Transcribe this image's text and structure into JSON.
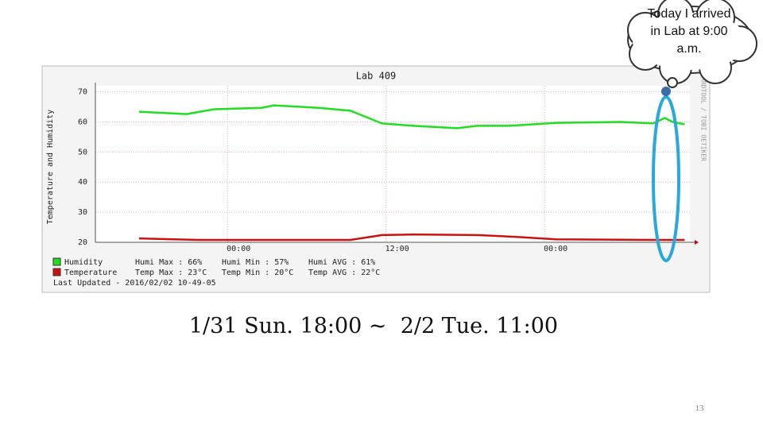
{
  "chart_data": {
    "type": "line",
    "title": "Lab 409",
    "y_label": "Temperature and Humidity",
    "watermark": "RRDTOOL / TOBI OETIKER",
    "xlim": [
      -10,
      35
    ],
    "ylim": [
      20,
      72
    ],
    "yticks": [
      20,
      30,
      40,
      50,
      60,
      70
    ],
    "xticks": [
      {
        "value": 0,
        "label": "00:00"
      },
      {
        "value": 12,
        "label": "12:00"
      },
      {
        "value": 24,
        "label": "00:00"
      }
    ],
    "grid": true,
    "series": [
      {
        "name": "Humidity",
        "color": "#22dd22",
        "x": [
          -6.7,
          -3.1,
          -1.0,
          2.6,
          3.5,
          6.9,
          9.3,
          10.5,
          11.7,
          14.1,
          17.4,
          18.9,
          21.3,
          24.9,
          29.8,
          32.2,
          33.1,
          33.7,
          34.6
        ],
        "values": [
          63.4,
          62.6,
          64.2,
          64.7,
          65.5,
          64.7,
          63.7,
          61.6,
          59.5,
          58.7,
          57.9,
          58.7,
          58.7,
          59.7,
          60,
          59.5,
          61.3,
          60,
          59.2
        ]
      },
      {
        "name": "Temperature",
        "color": "#cc1111",
        "x": [
          -6.7,
          -2.2,
          9.3,
          11.7,
          14.1,
          18.9,
          21.9,
          24.9,
          32.2,
          34.6
        ],
        "values": [
          21.3,
          20.8,
          20.8,
          22.4,
          22.6,
          22.4,
          21.8,
          21,
          20.8,
          20.8
        ]
      }
    ],
    "stats": [
      [
        "Humi Max : 66%",
        "Humi Min : 57%",
        "Humi AVG : 61%"
      ],
      [
        "Temp Max : 23°C",
        "Temp Min : 20°C",
        "Temp AVG : 22°C"
      ]
    ],
    "last_update": "Last Updated - 2016/02/02 10-49-05"
  },
  "caption": "1/31 Sun. 18:00 ~  2/2 Tue. 11:00",
  "callout": "Today I arrived in Lab at 9:00 a.m.",
  "page_number": "13"
}
